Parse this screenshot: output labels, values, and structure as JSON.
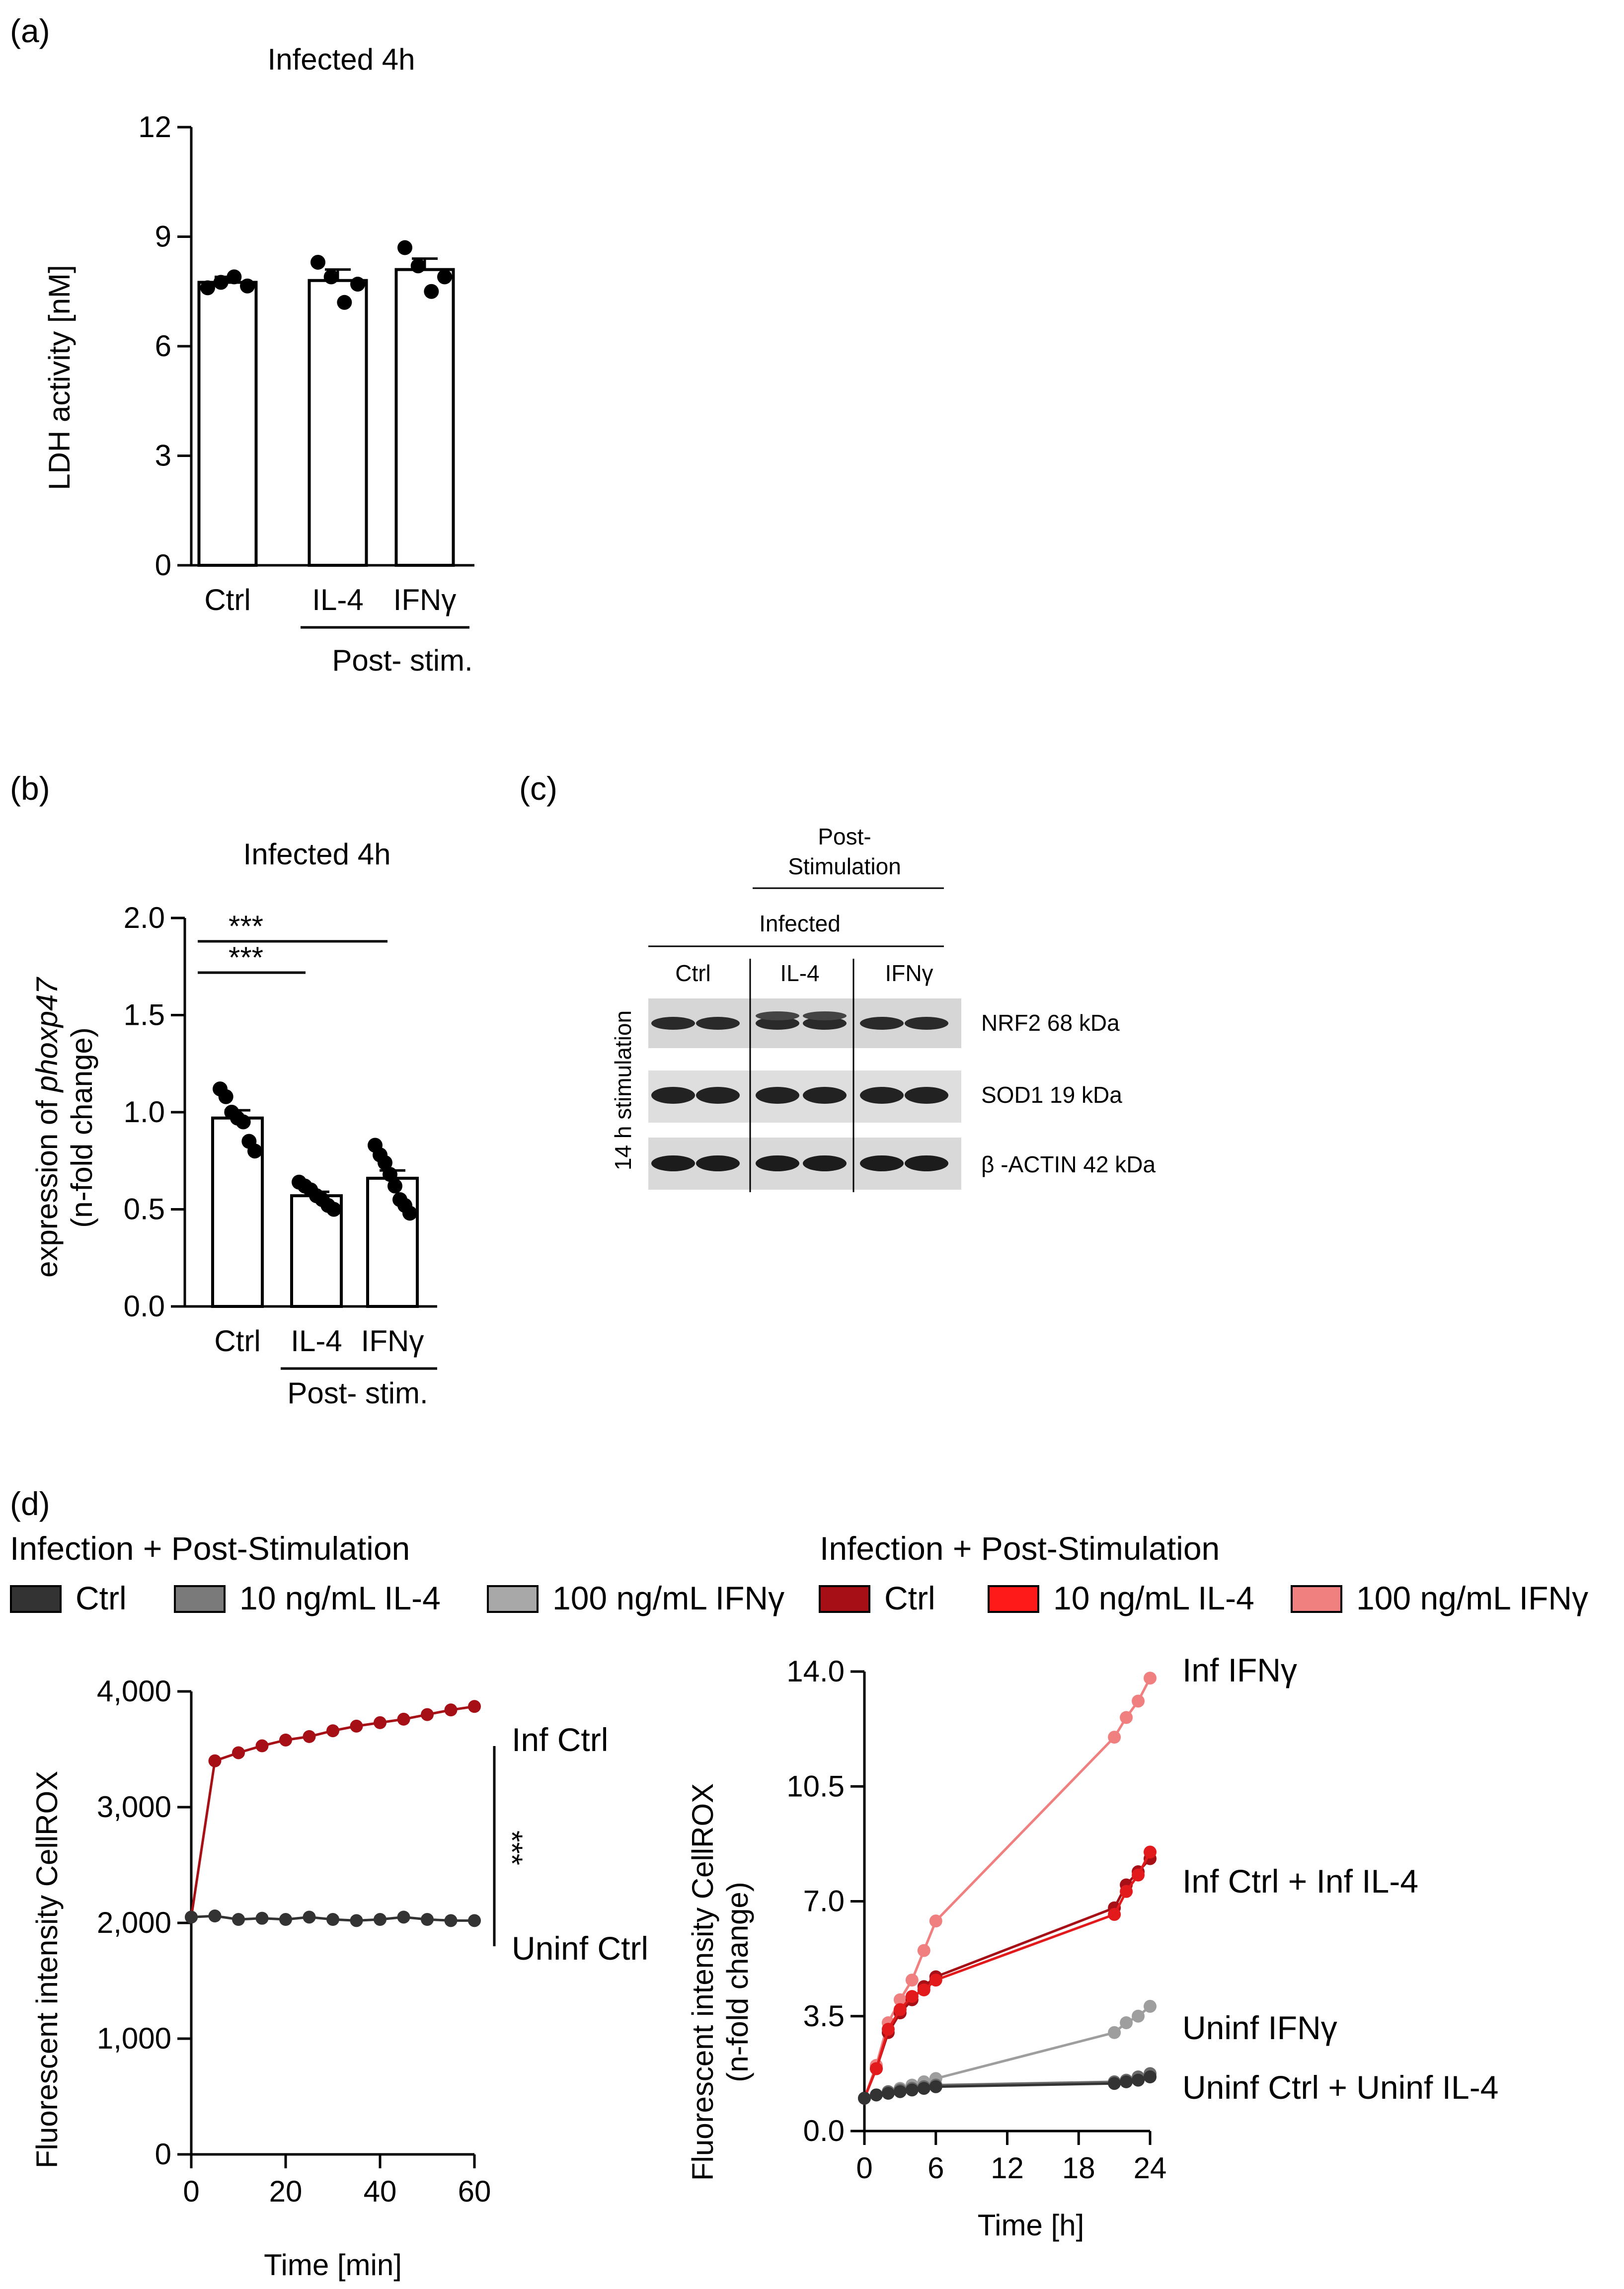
{
  "panel_labels": {
    "a": "(a)",
    "b": "(b)",
    "c": "(c)",
    "d": "(d)"
  },
  "chart_data": [
    {
      "id": "a",
      "type": "bar",
      "title": "Infected 4h",
      "ylabel": "LDH activity [nM]",
      "xlabel": "",
      "categories": [
        "Ctrl",
        "IL-4",
        "IFNγ"
      ],
      "values": [
        7.75,
        7.8,
        8.1
      ],
      "errors": [
        0.15,
        0.3,
        0.3
      ],
      "points": [
        [
          7.6,
          7.75,
          7.9,
          7.65
        ],
        [
          8.3,
          7.9,
          7.2,
          7.7
        ],
        [
          8.7,
          8.2,
          7.5,
          7.9
        ]
      ],
      "ylim": [
        0,
        12
      ],
      "yticks": [
        0,
        3,
        6,
        9,
        12
      ],
      "group_label": "Post- stim."
    },
    {
      "id": "b",
      "type": "bar",
      "title": "Infected 4h",
      "ylabel": "expression of phoxp47",
      "ylabel_prefix": "expression of ",
      "ylabel_italic": "phoxp47",
      "ylabel2": "(n-fold change)",
      "categories": [
        "Ctrl",
        "IL-4",
        "IFNγ"
      ],
      "values": [
        0.97,
        0.57,
        0.66
      ],
      "errors": [
        0.04,
        0.02,
        0.04
      ],
      "points": [
        [
          1.12,
          1.08,
          1.0,
          0.97,
          0.95,
          0.85,
          0.8
        ],
        [
          0.64,
          0.62,
          0.6,
          0.57,
          0.55,
          0.52,
          0.5
        ],
        [
          0.83,
          0.78,
          0.74,
          0.68,
          0.62,
          0.55,
          0.52,
          0.48
        ]
      ],
      "ylim": [
        0,
        2
      ],
      "yticks": [
        "0.0",
        "0.5",
        "1.0",
        "1.5",
        "2.0"
      ],
      "significance": [
        "***",
        "***"
      ],
      "group_label": "Post- stim."
    },
    {
      "id": "d-left",
      "type": "line",
      "xlabel": "Time [min]",
      "ylabel": "Fluorescent intensity CellROX",
      "xlim": [
        0,
        60
      ],
      "xticks": [
        0,
        20,
        40,
        60
      ],
      "ylim": [
        0,
        4000
      ],
      "yticks": [
        "0",
        "1,000",
        "2,000",
        "3,000",
        "4,000"
      ],
      "series": [
        {
          "name": "Inf Ctrl",
          "color": "#a50f15",
          "x": [
            0,
            5,
            10,
            15,
            20,
            25,
            30,
            35,
            40,
            45,
            50,
            55,
            60
          ],
          "y": [
            2050,
            3400,
            3470,
            3530,
            3580,
            3610,
            3660,
            3700,
            3730,
            3760,
            3800,
            3840,
            3870
          ]
        },
        {
          "name": "Uninf Ctrl",
          "color": "#333333",
          "x": [
            0,
            5,
            10,
            15,
            20,
            25,
            30,
            35,
            40,
            45,
            50,
            55,
            60
          ],
          "y": [
            2050,
            2060,
            2030,
            2040,
            2030,
            2050,
            2030,
            2020,
            2030,
            2050,
            2030,
            2020,
            2020
          ]
        }
      ],
      "significance": "***"
    },
    {
      "id": "d-right",
      "type": "line",
      "xlabel": "Time [h]",
      "ylabel": "Fluorescent intensity CellROX",
      "ylabel2": "(n-fold change)",
      "xlim": [
        0,
        24
      ],
      "xticks": [
        0,
        6,
        12,
        18,
        24
      ],
      "ylim": [
        0,
        14
      ],
      "yticks": [
        "0.0",
        "3.5",
        "7.0",
        "10.5",
        "14.0"
      ],
      "series": [
        {
          "name": "Inf IFNγ",
          "color": "#f08080",
          "x": [
            0,
            1,
            2,
            3,
            4,
            5,
            6,
            21,
            22,
            23,
            24
          ],
          "y": [
            1.0,
            2.0,
            3.3,
            4.0,
            4.6,
            5.5,
            6.4,
            12.0,
            12.6,
            13.1,
            13.8
          ]
        },
        {
          "name": "Inf Ctrl",
          "color": "#a50f15",
          "x": [
            0,
            1,
            2,
            3,
            4,
            5,
            6,
            21,
            22,
            23,
            24
          ],
          "y": [
            1.0,
            1.9,
            3.0,
            3.6,
            4.0,
            4.4,
            4.7,
            6.8,
            7.5,
            7.9,
            8.3
          ]
        },
        {
          "name": "Inf IL-4",
          "color": "#e31a1c",
          "x": [
            0,
            1,
            2,
            3,
            4,
            5,
            6,
            21,
            22,
            23,
            24
          ],
          "y": [
            1.0,
            1.9,
            3.1,
            3.7,
            4.1,
            4.3,
            4.6,
            6.6,
            7.3,
            7.8,
            8.5
          ]
        },
        {
          "name": "Uninf IFNγ",
          "color": "#9e9e9e",
          "x": [
            0,
            1,
            2,
            3,
            4,
            5,
            6,
            21,
            22,
            23,
            24
          ],
          "y": [
            1.0,
            1.1,
            1.2,
            1.3,
            1.4,
            1.5,
            1.6,
            3.0,
            3.3,
            3.5,
            3.8
          ]
        },
        {
          "name": "Uninf IL-4",
          "color": "#6b6b6b",
          "x": [
            0,
            1,
            2,
            3,
            4,
            5,
            6,
            21,
            22,
            23,
            24
          ],
          "y": [
            1.0,
            1.1,
            1.2,
            1.25,
            1.3,
            1.35,
            1.4,
            1.5,
            1.55,
            1.65,
            1.75
          ]
        },
        {
          "name": "Uninf Ctrl",
          "color": "#333333",
          "x": [
            0,
            1,
            2,
            3,
            4,
            5,
            6,
            21,
            22,
            23,
            24
          ],
          "y": [
            1.0,
            1.1,
            1.15,
            1.2,
            1.25,
            1.3,
            1.35,
            1.45,
            1.5,
            1.55,
            1.65
          ]
        }
      ],
      "right_labels": [
        "Inf IFNγ",
        "Inf Ctrl + Inf IL-4",
        "Uninf IFNγ",
        "Uninf Ctrl + Uninf IL-4"
      ]
    }
  ],
  "blot": {
    "group_header_1": "Post-",
    "group_header_2": "Stimulation",
    "infected_label": "Infected",
    "lanes": [
      "Ctrl",
      "IL-4",
      "IFNγ"
    ],
    "row_label": "14 h stimulation",
    "bands": [
      "NRF2 68 kDa",
      "SOD1 19 kDa",
      "β -ACTIN 42 kDa"
    ]
  },
  "legend": {
    "left_title": "Infection + Post-Stimulation",
    "right_title": "Infection + Post-Stimulation",
    "left_items": [
      {
        "label": "Ctrl",
        "color": "#333333"
      },
      {
        "label": "10 ng/mL IL-4",
        "color": "#7a7a7a"
      },
      {
        "label": "100 ng/mL IFNγ",
        "color": "#a8a8a8"
      }
    ],
    "right_items": [
      {
        "label": "Ctrl",
        "color": "#a50f15"
      },
      {
        "label": "10 ng/mL IL-4",
        "color": "#ff1a1a"
      },
      {
        "label": "100 ng/mL IFNγ",
        "color": "#f08080"
      }
    ]
  }
}
